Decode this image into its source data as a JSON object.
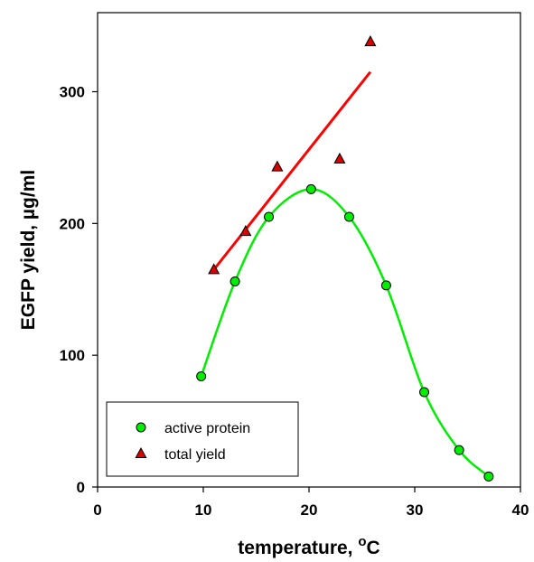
{
  "chart_data": {
    "type": "scatter",
    "xlabel": "temperature, ",
    "xlabel_unit": "C",
    "xlabel_degree": "o",
    "ylabel": "EGFP yield, µg/ml",
    "xlim": [
      0,
      40
    ],
    "ylim": [
      0,
      360
    ],
    "x_ticks": [
      0,
      10,
      20,
      30,
      40
    ],
    "y_ticks": [
      0,
      100,
      200,
      300
    ],
    "grid": false,
    "legend_position": "bottom-left",
    "series": [
      {
        "name": "active protein",
        "marker": "circle",
        "color": "#00ee00",
        "line_color": "#00ee00",
        "fit": "smooth",
        "x": [
          9.8,
          13.0,
          16.2,
          20.2,
          23.8,
          27.3,
          30.9,
          34.2,
          37.0
        ],
        "y": [
          84,
          156,
          205,
          226,
          205,
          153,
          72,
          28,
          8
        ]
      },
      {
        "name": "total yield",
        "marker": "triangle",
        "color": "#dd0000",
        "line_color": "#ff0000",
        "fit": "linear",
        "fit_line": {
          "x": [
            11.0,
            25.8
          ],
          "y": [
            165,
            315
          ]
        },
        "x": [
          11.0,
          14.0,
          17.0,
          22.9,
          25.8
        ],
        "y": [
          165,
          194,
          243,
          249,
          338
        ]
      }
    ]
  }
}
